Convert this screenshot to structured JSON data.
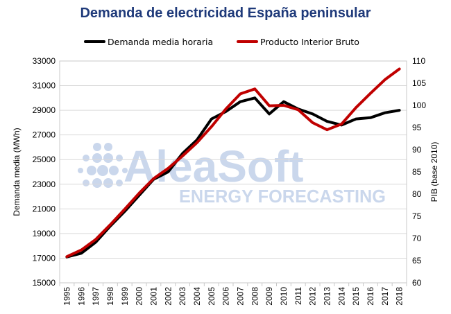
{
  "chart_data": {
    "type": "line",
    "title": "Demanda de electricidad España peninsular",
    "ylabel": "Demanda media (MWh)",
    "ylabel_right": "PIB (base 2010)",
    "ylim": [
      15000,
      33000
    ],
    "yticks": [
      15000,
      17000,
      19000,
      21000,
      23000,
      25000,
      27000,
      29000,
      31000,
      33000
    ],
    "ylim_right": [
      60,
      110
    ],
    "yticks_right": [
      60,
      65,
      70,
      75,
      80,
      85,
      90,
      95,
      100,
      105,
      110
    ],
    "x": [
      "1995",
      "1996",
      "1997",
      "1998",
      "1999",
      "2000",
      "2001",
      "2002",
      "2003",
      "2004",
      "2005",
      "2006",
      "2007",
      "2008",
      "2009",
      "2010",
      "2011",
      "2012",
      "2013",
      "2014",
      "2015",
      "2016",
      "2017",
      "2018"
    ],
    "grid": true,
    "legend_position": "top",
    "series": [
      {
        "name": "Demanda media horaria",
        "axis": "left",
        "color": "#000000",
        "values": [
          17100,
          17400,
          18300,
          19600,
          20800,
          22100,
          23400,
          24000,
          25500,
          26600,
          28300,
          28900,
          29700,
          30000,
          28700,
          29700,
          29100,
          28700,
          28100,
          27800,
          28300,
          28400,
          28800,
          29000
        ]
      },
      {
        "name": "Producto Interior Bruto",
        "axis": "right",
        "color": "#c00000",
        "values": [
          65.9,
          67.4,
          69.8,
          73.1,
          76.6,
          80.2,
          83.5,
          85.8,
          88.6,
          91.6,
          95.2,
          99.2,
          102.6,
          103.7,
          99.9,
          100.0,
          99.0,
          96.1,
          94.5,
          95.8,
          99.5,
          102.7,
          105.8,
          108.2
        ]
      }
    ]
  },
  "watermark": {
    "brand": "AleaSoft",
    "tagline": "ENERGY FORECASTING",
    "color": "#c5d3ea"
  }
}
